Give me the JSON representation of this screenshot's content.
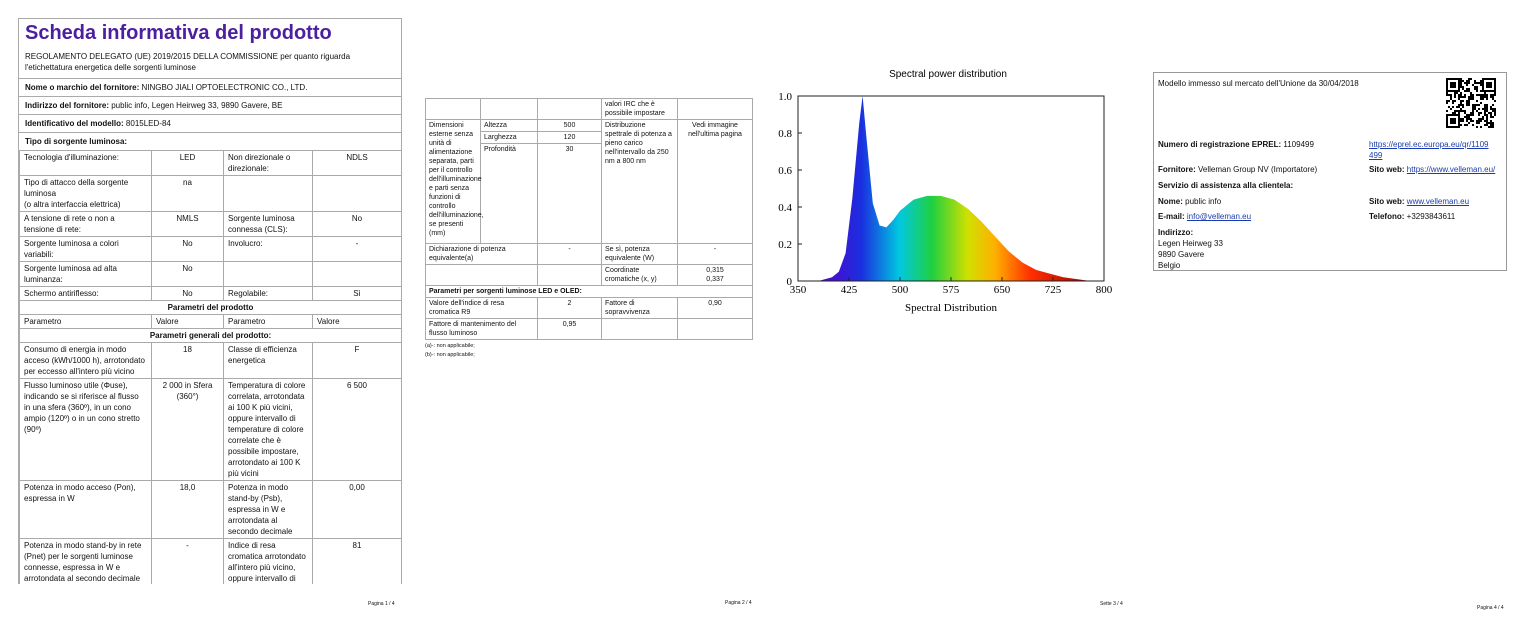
{
  "page1": {
    "title": "Scheda informativa del prodotto",
    "regulation": "REGOLAMENTO DELEGATO (UE) 2019/2015 DELLA COMMISSIONE per quanto riguarda l'etichettatura energetica delle sorgenti luminose",
    "supplier_name": {
      "label": "Nome o marchio del fornitore:",
      "value": "NINGBO JIALI OPTOELECTRONIC CO., LTD."
    },
    "supplier_address": {
      "label": "Indirizzo del fornitore:",
      "value": "public info, Legen Heirweg 33, 9890 Gavere, BE"
    },
    "model_id": {
      "label": "Identificativo del modello:",
      "value": "8015LED-84"
    },
    "type_section": "Tipo di sorgente luminosa:",
    "type_rows": [
      {
        "label": "Tecnologia d'illuminazione:",
        "value": "LED",
        "label2": "Non direzionale o direzionale:",
        "value2": "NDLS"
      },
      {
        "label": "Tipo di attacco della sorgente luminosa\n(o altra interfaccia elettrica)",
        "value": "na"
      },
      {
        "label": "A tensione di rete o non a tensione di rete:",
        "value": "NMLS",
        "label2": "Sorgente luminosa connessa (CLS):",
        "value2": "No"
      },
      {
        "label": "Sorgente luminosa a colori variabili:",
        "value": "No",
        "label2": "Involucro:",
        "value2": "-"
      },
      {
        "label": "Sorgente luminosa ad alta luminanza:",
        "value": "No"
      },
      {
        "label": "Schermo antiriflesso:",
        "value": "No",
        "label2": "Regolabile:",
        "value2": "Sì"
      }
    ],
    "params_header": "Parametri del prodotto",
    "column_headers": [
      "Parametro",
      "Valore",
      "Parametro",
      "Valore"
    ],
    "general_section": "Parametri generali del prodotto:",
    "general_rows": [
      {
        "label": "Consumo di energia in modo acceso (kWh/1000 h), arrotondato per eccesso all'intero più vicino",
        "value": "18",
        "label2": "Classe di efficienza energetica",
        "value2": "F"
      },
      {
        "label": "Flusso luminoso utile (Φuse), indicando se si riferisce al flusso in una sfera (360º), in un cono ampio (120º) o in un cono stretto (90º)",
        "value": "2 000 in Sfera (360°)",
        "label2": "Temperatura di colore correlata, arrotondata ai 100 K più vicini, oppure intervallo di temperature di colore correlate che è possibile impostare, arrotondato ai 100 K più vicini",
        "value2": "6 500"
      },
      {
        "label": "Potenza in modo acceso (Pon), espressa in W",
        "value": "18,0",
        "label2": "Potenza in modo stand-by (Psb), espressa in W e arrotondata al secondo decimale",
        "value2": "0,00"
      },
      {
        "label": "Potenza in modo stand-by in rete (Pnet) per le sorgenti luminose connesse, espressa in W e arrotondata al secondo decimale",
        "value": "-",
        "label2": "Indice di resa cromatica arrotondato all'intero più vicino, oppure intervallo di",
        "value2": "81"
      }
    ],
    "footer": "Pagina 1 / 4"
  },
  "page2": {
    "irc_note": "valori IRC che è possibile impostare",
    "dimensions_label": "Dimensioni esterne senza unità di alimentazione separata, parti per il controllo dell'illuminazione e parti senza funzioni di controllo dell'illuminazione, se presenti (mm)",
    "dimensions": [
      {
        "label": "Altezza",
        "value": "500"
      },
      {
        "label": "Larghezza",
        "value": "120"
      },
      {
        "label": "Profondità",
        "value": "30"
      }
    ],
    "spectral_label": "Distribuzione spettrale di potenza a pieno carico nell'intervallo da 250 nm a 800 nm",
    "spectral_value": "Vedi immagine nell'ultima pagina",
    "equivalent_label": "Dichiarazione di potenza equivalente(a)",
    "equivalent_value": "-",
    "equivalent_power_label": "Se sì, potenza equivalente (W)",
    "equivalent_power_value": "-",
    "chromaticity_label": "Coordinate cromatiche (x, y)",
    "chromaticity_value": "0,315\n0,337",
    "led_section": "Parametri per sorgenti luminose LED e OLED:",
    "r9_label": "Valore dell'indice di resa cromatica R9",
    "r9_value": "2",
    "survival_label": "Fattore di sopravvivenza",
    "survival_value": "0,90",
    "maintenance_label": "Fattore di mantenimento del flusso luminoso",
    "maintenance_value": "0,95",
    "footnotes": [
      "(a)-: non applicabile;",
      "(b)-: non applicabile;"
    ],
    "footer": "Pagina 2 / 4"
  },
  "chart_data": {
    "type": "area",
    "title": "Spectral power distribution",
    "x_label": "Spectral Distribution",
    "x": [
      380,
      400,
      410,
      420,
      430,
      440,
      445,
      450,
      460,
      470,
      480,
      490,
      500,
      520,
      540,
      560,
      580,
      600,
      620,
      640,
      660,
      680,
      700,
      720,
      740,
      760,
      780
    ],
    "values": [
      0,
      0.02,
      0.05,
      0.15,
      0.45,
      0.85,
      1.0,
      0.8,
      0.42,
      0.3,
      0.29,
      0.33,
      0.38,
      0.44,
      0.46,
      0.46,
      0.44,
      0.39,
      0.32,
      0.24,
      0.16,
      0.1,
      0.06,
      0.04,
      0.02,
      0.01,
      0
    ],
    "xlim": [
      350,
      800
    ],
    "xticks": [
      350,
      425,
      500,
      575,
      650,
      725,
      800
    ],
    "ylim": [
      0,
      1
    ],
    "yticks": [
      0,
      0.2,
      0.4,
      0.6,
      0.8,
      {
        "value": 1,
        "label": "1.0"
      }
    ],
    "footer": "Sette 3 / 4"
  },
  "page4": {
    "market_date": "Modello immesso sul mercato dell'Unione da 30/04/2018",
    "eprel_label": "Numero di registrazione EPREL:",
    "eprel_value": "1109499",
    "eprel_link": "https://eprel.ec.europa.eu/qr/1109499",
    "supplier_label": "Fornitore:",
    "supplier_value": "Velleman Group NV (Importatore)",
    "website_label": "Sito web:",
    "website_value": "https://www.velleman.eu/",
    "service_header": "Servizio di assistenza alla clientela:",
    "name_label": "Nome:",
    "name_value": "public info",
    "service_website_label": "Sito web:",
    "service_website_value": "www.velleman.eu",
    "email_label": "E-mail:",
    "email_value": "info@velleman.eu",
    "phone_label": "Telefono:",
    "phone_value": "+3293843611",
    "address_label": "Indirizzo:",
    "address_lines": [
      "Legen Heirweg 33",
      "9890 Gavere",
      "Belgio"
    ],
    "footer": "Pagina 4 / 4"
  }
}
